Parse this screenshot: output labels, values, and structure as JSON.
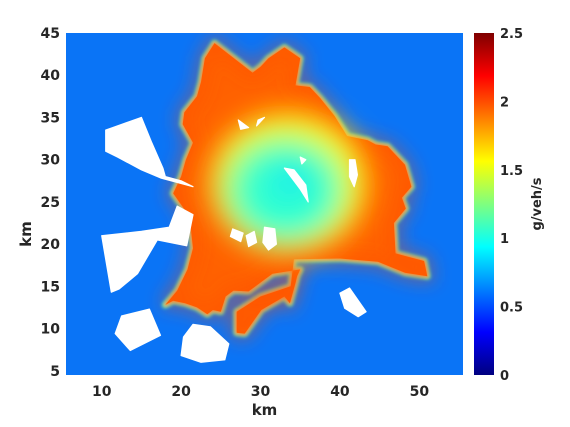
{
  "colors": {
    "background": "#0a74f6",
    "hole": "#ffffff",
    "colormap": [
      "#00007f",
      "#0000ff",
      "#007fff",
      "#00ffff",
      "#7fff7f",
      "#ffff00",
      "#ff7f00",
      "#ff0000",
      "#7f0000"
    ]
  },
  "chart_data": {
    "type": "heatmap",
    "title": "",
    "xlabel": "km",
    "ylabel": "km",
    "xlim": [
      5.5,
      55.5
    ],
    "ylim": [
      4.5,
      45
    ],
    "xticks": [
      10,
      20,
      30,
      40,
      50
    ],
    "yticks": [
      5,
      10,
      15,
      20,
      25,
      30,
      35,
      40,
      45
    ],
    "colorbar": {
      "label": "g/veh/s",
      "min": 0,
      "max": 2.5,
      "ticks": [
        0,
        0.5,
        1,
        1.5,
        2,
        2.5
      ],
      "colormap": "jet"
    },
    "field": {
      "background_value": 0.6,
      "region_boundary_value": 1.1,
      "region_edge_value": 1.85,
      "region_interior_value": 1.95,
      "ring_value": 1.55,
      "core_value": 1.05,
      "core_center": [
        33.5,
        26.5
      ]
    },
    "region": [
      [
        23.0,
        42.0
      ],
      [
        24.2,
        43.8
      ],
      [
        29.0,
        40.3
      ],
      [
        30.0,
        41.0
      ],
      [
        31.0,
        42.0
      ],
      [
        33.0,
        43.3
      ],
      [
        35.0,
        42.0
      ],
      [
        34.4,
        38.8
      ],
      [
        36.2,
        38.6
      ],
      [
        37.5,
        37.3
      ],
      [
        39.3,
        35.2
      ],
      [
        40.9,
        32.8
      ],
      [
        43.5,
        32.3
      ],
      [
        44.5,
        31.8
      ],
      [
        46.0,
        31.6
      ],
      [
        48.2,
        29.4
      ],
      [
        49.0,
        26.8
      ],
      [
        47.8,
        25.5
      ],
      [
        48.3,
        24.2
      ],
      [
        46.8,
        22.5
      ],
      [
        47.0,
        18.9
      ],
      [
        50.6,
        18.0
      ],
      [
        51.0,
        16.2
      ],
      [
        48.2,
        16.6
      ],
      [
        44.8,
        17.9
      ],
      [
        40.0,
        18.3
      ],
      [
        34.2,
        18.2
      ],
      [
        33.8,
        15.0
      ],
      [
        30.0,
        13.8
      ],
      [
        27.0,
        12.0
      ],
      [
        27.0,
        9.5
      ],
      [
        28.0,
        9.4
      ],
      [
        30.1,
        12.2
      ],
      [
        33.0,
        13.8
      ],
      [
        33.7,
        13.0
      ],
      [
        34.4,
        15.4
      ],
      [
        34.6,
        16.2
      ],
      [
        35.0,
        17.0
      ],
      [
        31.5,
        16.5
      ],
      [
        28.5,
        14.4
      ],
      [
        26.6,
        14.5
      ],
      [
        25.6,
        13.8
      ],
      [
        25.0,
        12.0
      ],
      [
        24.0,
        12.2
      ],
      [
        23.3,
        11.7
      ],
      [
        22.0,
        12.5
      ],
      [
        20.5,
        13.0
      ],
      [
        19.0,
        13.3
      ],
      [
        18.0,
        12.8
      ],
      [
        19.5,
        14.5
      ],
      [
        20.8,
        17.0
      ],
      [
        21.5,
        19.5
      ],
      [
        21.2,
        22.0
      ],
      [
        20.5,
        24.0
      ],
      [
        19.0,
        26.0
      ],
      [
        20.0,
        28.0
      ],
      [
        20.6,
        30.0
      ],
      [
        21.5,
        32.0
      ],
      [
        20.2,
        34.2
      ],
      [
        20.4,
        35.6
      ],
      [
        22.0,
        37.5
      ],
      [
        22.5,
        39.2
      ]
    ],
    "holes": [
      [
        [
          10.5,
          33.5
        ],
        [
          15.0,
          35.0
        ],
        [
          16.3,
          32.0
        ],
        [
          17.7,
          29.0
        ],
        [
          18.0,
          28.0
        ],
        [
          20.0,
          27.5
        ],
        [
          21.5,
          26.8
        ],
        [
          17.5,
          27.8
        ],
        [
          15.0,
          28.8
        ],
        [
          12.0,
          30.3
        ],
        [
          10.5,
          31.0
        ]
      ],
      [
        [
          10.0,
          21.0
        ],
        [
          15.0,
          21.5
        ],
        [
          18.5,
          22.0
        ],
        [
          19.5,
          24.5
        ],
        [
          21.5,
          23.5
        ],
        [
          20.7,
          19.8
        ],
        [
          17.0,
          20.5
        ],
        [
          14.5,
          16.5
        ],
        [
          12.2,
          14.7
        ],
        [
          11.2,
          14.3
        ]
      ],
      [
        [
          12.5,
          11.5
        ],
        [
          16.0,
          12.3
        ],
        [
          17.4,
          9.2
        ],
        [
          13.6,
          7.4
        ],
        [
          11.7,
          9.4
        ]
      ],
      [
        [
          20.3,
          9.0
        ],
        [
          21.5,
          10.5
        ],
        [
          23.7,
          10.2
        ],
        [
          26.0,
          8.2
        ],
        [
          25.5,
          6.3
        ],
        [
          22.5,
          6.0
        ],
        [
          20.0,
          6.8
        ]
      ],
      [
        [
          27.2,
          34.7
        ],
        [
          28.5,
          33.8
        ],
        [
          27.5,
          33.6
        ]
      ],
      [
        [
          29.7,
          34.7
        ],
        [
          30.5,
          35.0
        ],
        [
          29.5,
          34.0
        ]
      ],
      [
        [
          26.5,
          21.8
        ],
        [
          27.8,
          21.3
        ],
        [
          27.5,
          20.3
        ],
        [
          26.2,
          20.9
        ]
      ],
      [
        [
          28.2,
          21.0
        ],
        [
          29.2,
          21.5
        ],
        [
          29.5,
          20.2
        ],
        [
          28.5,
          19.7
        ]
      ],
      [
        [
          30.5,
          22.0
        ],
        [
          31.8,
          21.8
        ],
        [
          32.0,
          20.0
        ],
        [
          31.0,
          19.3
        ],
        [
          30.3,
          20.2
        ]
      ],
      [
        [
          33.0,
          29.0
        ],
        [
          34.2,
          28.8
        ],
        [
          35.7,
          27.0
        ],
        [
          36.0,
          25.0
        ],
        [
          35.0,
          26.5
        ]
      ],
      [
        [
          35.0,
          30.3
        ],
        [
          35.7,
          30.0
        ],
        [
          35.2,
          29.5
        ]
      ],
      [
        [
          41.2,
          30.0
        ],
        [
          41.9,
          30.0
        ],
        [
          42.2,
          28.2
        ],
        [
          41.8,
          26.8
        ],
        [
          41.2,
          28.0
        ]
      ],
      [
        [
          40.0,
          14.2
        ],
        [
          41.2,
          14.8
        ],
        [
          43.3,
          12.0
        ],
        [
          42.3,
          11.4
        ],
        [
          40.6,
          12.4
        ]
      ]
    ]
  }
}
